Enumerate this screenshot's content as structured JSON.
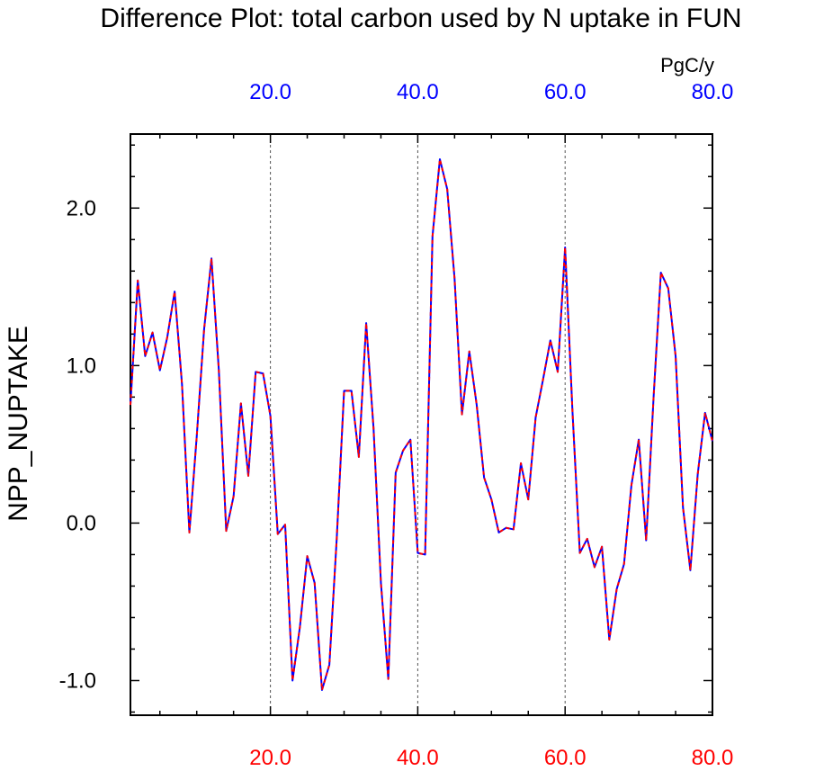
{
  "chart_data": {
    "type": "line",
    "title": "Difference Plot: total carbon used by N uptake in FUN",
    "ylabel": "NPP_NUPTAKE",
    "top_axis_units": "PgC/y",
    "xlim": [
      1,
      80
    ],
    "ylim": [
      -1.22,
      2.47
    ],
    "grid": "vertical dashed lines at 20, 40, 60",
    "x_ticks": [
      20,
      40,
      60,
      80
    ],
    "x_tick_labels": [
      "20.0",
      "40.0",
      "60.0",
      "80.0"
    ],
    "y_ticks": [
      -1,
      0,
      1,
      2
    ],
    "y_tick_labels": [
      "-1.0",
      "0.0",
      "1.0",
      "2.0"
    ],
    "bottom_tick_color": "#ff0000",
    "top_tick_color": "#0000ff",
    "series": [
      {
        "line_color": "#0000ff",
        "dash_color": "#ff0000",
        "x": [
          1,
          2,
          3,
          4,
          5,
          6,
          7,
          8,
          9,
          10,
          11,
          12,
          13,
          14,
          15,
          16,
          17,
          18,
          19,
          20,
          21,
          22,
          23,
          24,
          25,
          26,
          27,
          28,
          29,
          30,
          31,
          32,
          33,
          34,
          35,
          36,
          37,
          38,
          39,
          40,
          41,
          42,
          43,
          44,
          45,
          46,
          47,
          48,
          49,
          50,
          51,
          52,
          53,
          54,
          55,
          56,
          57,
          58,
          59,
          60,
          61,
          62,
          63,
          64,
          65,
          66,
          67,
          68,
          69,
          70,
          71,
          72,
          73,
          74,
          75,
          76,
          77,
          78,
          79,
          80
        ],
        "values": [
          0.75,
          1.54,
          1.06,
          1.21,
          0.97,
          1.18,
          1.47,
          0.88,
          -0.06,
          0.55,
          1.23,
          1.68,
          0.97,
          -0.05,
          0.17,
          0.76,
          0.3,
          0.96,
          0.95,
          0.68,
          -0.07,
          -0.01,
          -1.0,
          -0.66,
          -0.21,
          -0.38,
          -1.06,
          -0.9,
          -0.1,
          0.84,
          0.84,
          0.42,
          1.27,
          0.6,
          -0.38,
          -0.99,
          0.32,
          0.46,
          0.53,
          -0.19,
          -0.2,
          1.82,
          2.31,
          2.12,
          1.55,
          0.69,
          1.09,
          0.75,
          0.29,
          0.15,
          -0.06,
          -0.03,
          -0.04,
          0.38,
          0.15,
          0.67,
          0.91,
          1.16,
          0.96,
          1.75,
          0.71,
          -0.19,
          -0.1,
          -0.28,
          -0.15,
          -0.74,
          -0.42,
          -0.26,
          0.24,
          0.53,
          -0.11,
          0.79,
          1.59,
          1.49,
          1.06,
          0.1,
          -0.3,
          0.31,
          0.7,
          0.52
        ]
      }
    ]
  }
}
